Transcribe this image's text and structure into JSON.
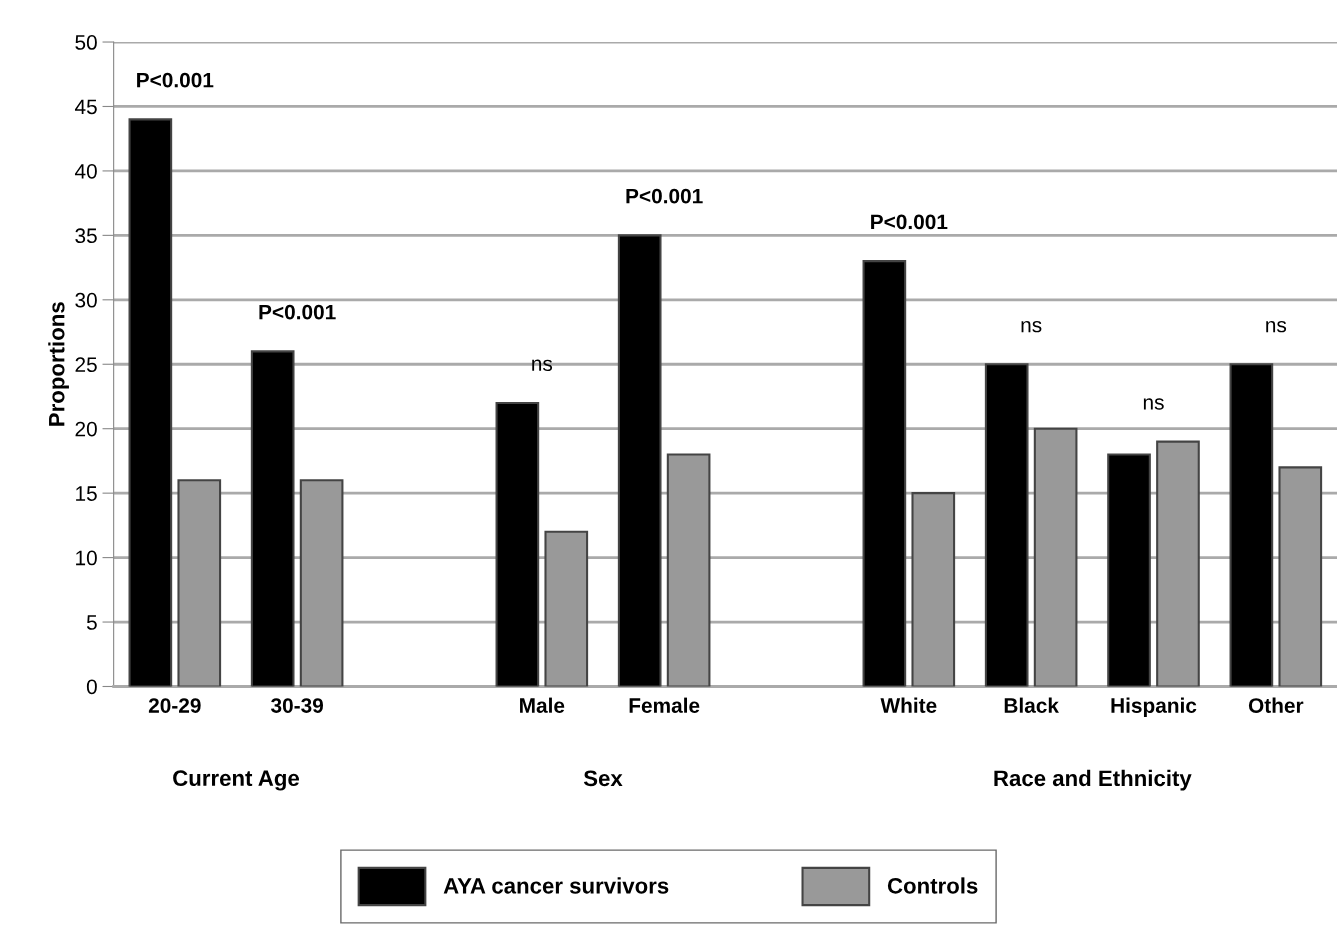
{
  "chart_data": {
    "type": "bar",
    "ylabel": "Proportions",
    "categories": [
      "20-29",
      "30-39",
      null,
      "Male",
      "Female",
      null,
      "White",
      "Black",
      "Hispanic",
      "Other"
    ],
    "series": [
      {
        "name": "AYA cancer survivors",
        "color": "#000000",
        "values": [
          44,
          26,
          null,
          22,
          35,
          null,
          33,
          25,
          18,
          25
        ]
      },
      {
        "name": "Controls",
        "color": "#999999",
        "values": [
          16,
          16,
          null,
          12,
          18,
          null,
          15,
          20,
          19,
          17
        ]
      }
    ],
    "ylim": [
      0,
      50
    ],
    "yticks": [
      0,
      5,
      10,
      15,
      20,
      25,
      30,
      35,
      40,
      45,
      50
    ],
    "grid": "y",
    "legend": "bottom",
    "annotations": [
      {
        "text": "P<0.001",
        "x": "20-29",
        "y": 44
      },
      {
        "text": "P<0.001",
        "x": "30-39",
        "y": 26
      },
      {
        "text": "ns",
        "x": "Male",
        "y": 22
      },
      {
        "text": "P<0.001",
        "x": "Female",
        "y": 35
      },
      {
        "text": "P<0.001",
        "x": "White",
        "y": 33
      },
      {
        "text": "ns",
        "x": "Black",
        "y": 25
      },
      {
        "text": "ns",
        "x": "Hispanic",
        "y": 19
      },
      {
        "text": "ns",
        "x": "Other",
        "y": 25
      },
      "Current Age",
      "Sex",
      "Race and Ethnicity"
    ]
  }
}
